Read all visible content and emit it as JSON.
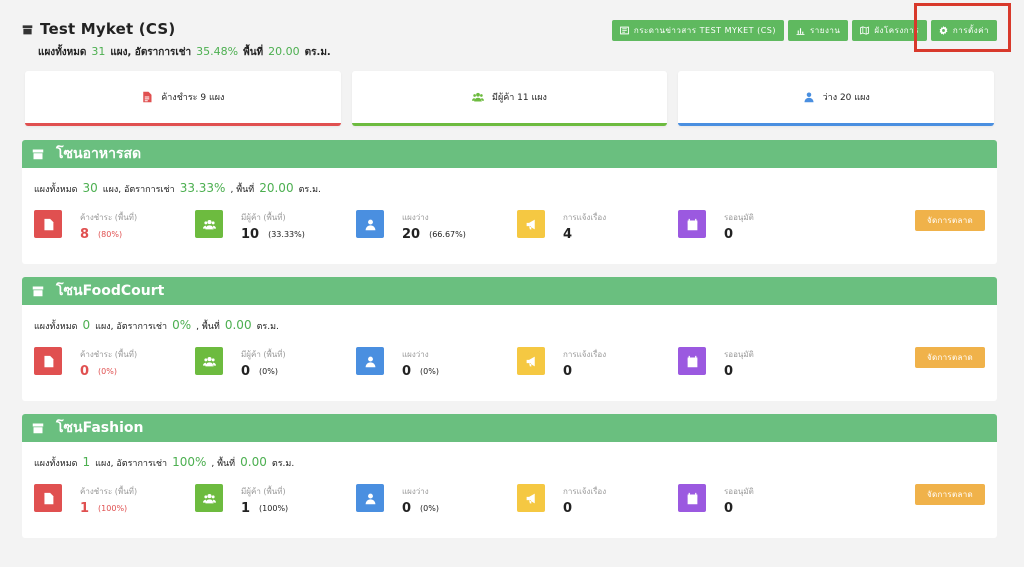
{
  "header": {
    "title": "Test Myket (CS)",
    "summary": {
      "total_label": "แผงทั้งหมด",
      "total": "31",
      "rate_label": "แผง, อัตราการเช่า",
      "rate": "35.48%",
      "area_label": "พื้นที่",
      "area": "20.00",
      "unit": "ตร.ม."
    },
    "buttons": {
      "board": "กระดานข่าวสาร TEST MYKET (CS)",
      "report": "รายงาน",
      "structure": "ผังโครงการ",
      "settings": "การตั้งค่า"
    }
  },
  "stats": {
    "overdue": "ค้างชำระ 9 แผง",
    "occupied": "มีผู้ค้า 11 แผง",
    "vacant": "ว่าง 20 แผง"
  },
  "labels": {
    "overdue": "ค้างชำระ (พื้นที่)",
    "occupied": "มีผู้ค้า (พื้นที่)",
    "vacant": "แผงว่าง",
    "reports": "การแจ้งเรื่อง",
    "pending": "รออนุมัติ",
    "manage": "จัดการตลาด",
    "total_label": "แผงทั้งหมด",
    "rate_label": "แผง, อัตราการเช่า",
    "area_label": ", พื้นที่",
    "unit": "ตร.ม."
  },
  "zones": [
    {
      "name": "โซนอาหารสด",
      "total": "30",
      "rate": "33.33%",
      "area": "20.00",
      "overdue": "8",
      "overdue_pct": "(80%)",
      "occupied": "10",
      "occupied_pct": "(33.33%)",
      "vacant": "20",
      "vacant_pct": "(66.67%)",
      "reports": "4",
      "pending": "0"
    },
    {
      "name": "โซนFoodCourt",
      "total": "0",
      "rate": "0%",
      "area": "0.00",
      "overdue": "0",
      "overdue_pct": "(0%)",
      "occupied": "0",
      "occupied_pct": "(0%)",
      "vacant": "0",
      "vacant_pct": "(0%)",
      "reports": "0",
      "pending": "0"
    },
    {
      "name": "โซนFashion",
      "total": "1",
      "rate": "100%",
      "area": "0.00",
      "overdue": "1",
      "overdue_pct": "(100%)",
      "occupied": "1",
      "occupied_pct": "(100%)",
      "vacant": "0",
      "vacant_pct": "(0%)",
      "reports": "0",
      "pending": "0"
    }
  ],
  "colors": {
    "primary_green": "#6abf7f",
    "overdue_red": "#e05050",
    "occupied_green": "#6dbb3f",
    "vacant_blue": "#4a8fe0",
    "reports_yellow": "#f5c842",
    "pending_purple": "#9b59e0",
    "manage_orange": "#f0b24a",
    "highlight": "#d8392b"
  }
}
